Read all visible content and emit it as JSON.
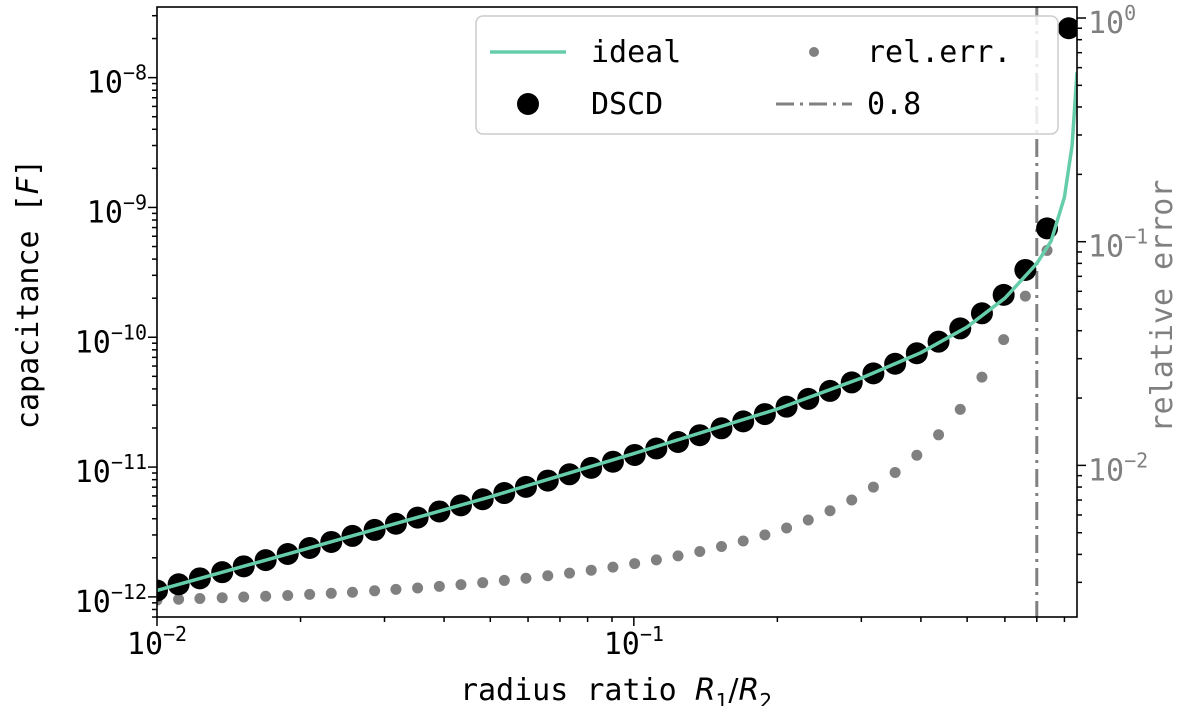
{
  "chart_data": {
    "type": "scatter",
    "x_scale": "log",
    "y_scale": "log",
    "y2_scale": "log",
    "xlim": [
      0.01,
      0.85
    ],
    "ylim": [
      7e-13,
      3.5e-08
    ],
    "y2lim": [
      0.0021,
      1.12
    ],
    "xlabel": {
      "prefix": "radius ratio ",
      "var1": "R",
      "sub1": "1",
      "slash": "/",
      "var2": "R",
      "sub2": "2"
    },
    "ylabel": {
      "prefix": "capacitance [",
      "unit": "F",
      "suffix": "]"
    },
    "y2label": "relative error",
    "x_ticks": [
      {
        "value": 0.01,
        "base": "10",
        "exp": "−2"
      },
      {
        "value": 0.1,
        "base": "10",
        "exp": "−1"
      }
    ],
    "y_ticks": [
      {
        "value": 1e-12,
        "base": "10",
        "exp": "−12"
      },
      {
        "value": 1e-11,
        "base": "10",
        "exp": "−11"
      },
      {
        "value": 1e-10,
        "base": "10",
        "exp": "−10"
      },
      {
        "value": 1e-09,
        "base": "10",
        "exp": "−9"
      },
      {
        "value": 1e-08,
        "base": "10",
        "exp": "−8"
      }
    ],
    "y2_ticks": [
      {
        "value": 0.01,
        "base": "10",
        "exp": "−2"
      },
      {
        "value": 0.1,
        "base": "10",
        "exp": "−1"
      },
      {
        "value": 1,
        "base": "10",
        "exp": "0"
      }
    ],
    "grid": false,
    "legend_position": "upper-right",
    "legend": [
      {
        "label": "ideal",
        "marker": "line",
        "color": "#66cdaa"
      },
      {
        "label": "rel.err.",
        "marker": "small-dot",
        "color": "#808080"
      },
      {
        "label": "DSCD",
        "marker": "dot",
        "color": "#000000"
      },
      {
        "label": "0.8",
        "marker": "dashdot",
        "color": "#808080"
      }
    ],
    "vline": {
      "x": 0.7,
      "label": "0.8",
      "color": "#808080"
    },
    "series": [
      {
        "name": "ideal",
        "type": "line",
        "color": "#66cdaa",
        "axis": "left",
        "x": [
          0.01,
          0.02,
          0.05,
          0.1,
          0.2,
          0.3,
          0.4,
          0.5,
          0.6,
          0.7,
          0.75,
          0.8,
          0.83,
          0.85
        ],
        "y": [
          1.12e-12,
          2.28e-12,
          5.9e-12,
          1.27e-11,
          2.8e-11,
          4.85e-11,
          7.6e-11,
          1.2e-10,
          2e-10,
          3.7e-10,
          5.5e-10,
          1.2e-09,
          3e-09,
          1.1e-08
        ]
      },
      {
        "name": "DSCD",
        "type": "scatter",
        "color": "#000000",
        "axis": "left",
        "x": [
          0.01,
          0.0111,
          0.0123,
          0.0137,
          0.0152,
          0.0169,
          0.0188,
          0.0209,
          0.0232,
          0.0257,
          0.0286,
          0.0317,
          0.0352,
          0.0391,
          0.0434,
          0.0482,
          0.0535,
          0.0594,
          0.066,
          0.0733,
          0.0814,
          0.0904,
          0.1004,
          0.1115,
          0.1238,
          0.1375,
          0.1527,
          0.1696,
          0.1883,
          0.2091,
          0.2322,
          0.2579,
          0.2864,
          0.318,
          0.3532,
          0.3922,
          0.4356,
          0.4837,
          0.5371,
          0.5965,
          0.6624,
          0.7356,
          0.8169
        ],
        "y": [
          1.12e-12,
          1.25e-12,
          1.39e-12,
          1.55e-12,
          1.72e-12,
          1.92e-12,
          2.14e-12,
          2.38e-12,
          2.65e-12,
          2.95e-12,
          3.28e-12,
          3.66e-12,
          4.08e-12,
          4.55e-12,
          5.07e-12,
          5.65e-12,
          6.31e-12,
          7.04e-12,
          7.87e-12,
          8.8e-12,
          9.86e-12,
          1.1e-11,
          1.24e-11,
          1.39e-11,
          1.56e-11,
          1.76e-11,
          1.99e-11,
          2.25e-11,
          2.56e-11,
          2.92e-11,
          3.35e-11,
          3.86e-11,
          4.49e-11,
          5.27e-11,
          6.25e-11,
          7.53e-11,
          9.25e-11,
          1.17e-10,
          1.53e-10,
          2.12e-10,
          3.3e-10,
          6.9e-10,
          2.4e-08
        ]
      },
      {
        "name": "rel.err.",
        "type": "scatter",
        "color": "#808080",
        "axis": "right",
        "x": [
          0.01,
          0.0111,
          0.0123,
          0.0137,
          0.0152,
          0.0169,
          0.0188,
          0.0209,
          0.0232,
          0.0257,
          0.0286,
          0.0317,
          0.0352,
          0.0391,
          0.0434,
          0.0482,
          0.0535,
          0.0594,
          0.066,
          0.0733,
          0.0814,
          0.0904,
          0.1004,
          0.1115,
          0.1238,
          0.1375,
          0.1527,
          0.1696,
          0.1883,
          0.2091,
          0.2322,
          0.2579,
          0.2864,
          0.318,
          0.3532,
          0.3922,
          0.4356,
          0.4837,
          0.5371,
          0.5965,
          0.6624,
          0.7356
        ],
        "y": [
          0.0025,
          0.00252,
          0.00254,
          0.00256,
          0.00258,
          0.0026,
          0.00262,
          0.00265,
          0.00268,
          0.00271,
          0.00275,
          0.00279,
          0.00283,
          0.00288,
          0.00293,
          0.00299,
          0.00306,
          0.00313,
          0.00321,
          0.0033,
          0.0034,
          0.00351,
          0.00364,
          0.00378,
          0.00394,
          0.00412,
          0.00434,
          0.00459,
          0.00489,
          0.00525,
          0.0057,
          0.00627,
          0.007,
          0.008,
          0.0093,
          0.0111,
          0.0137,
          0.0178,
          0.0248,
          0.0365,
          0.0571,
          0.0914
        ]
      }
    ]
  }
}
